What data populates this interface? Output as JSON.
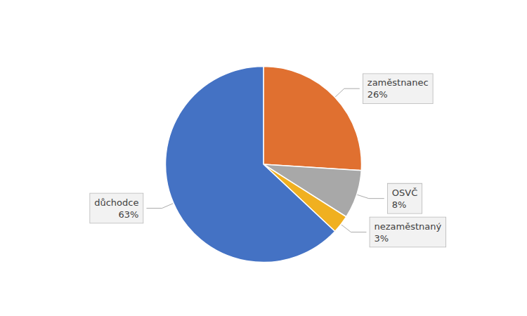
{
  "chart_data": {
    "type": "pie",
    "categories": [
      "zaměstnanec",
      "OSVČ",
      "nezaměstnaný",
      "důchodce"
    ],
    "values": [
      26,
      8,
      3,
      63
    ],
    "value_labels": [
      "26%",
      "8%",
      "3%",
      "63%"
    ],
    "colors": [
      "#E07030",
      "#A8A8A8",
      "#F0B020",
      "#4472C4"
    ],
    "data_labels": true,
    "legend": false
  }
}
